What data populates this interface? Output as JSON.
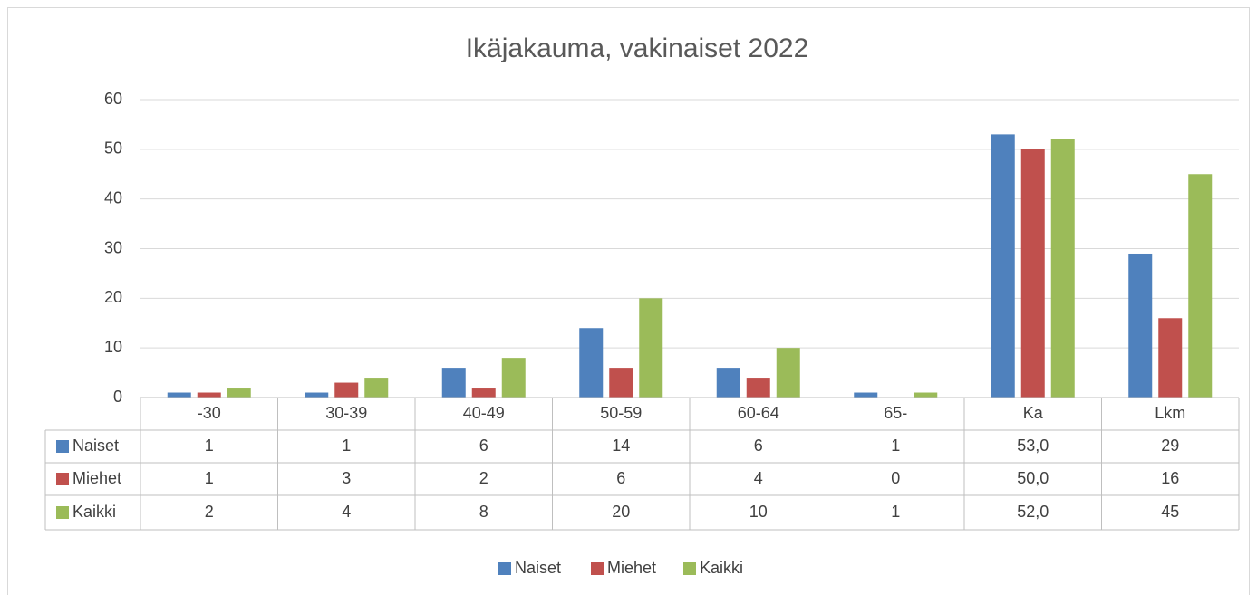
{
  "chart_data": {
    "type": "bar",
    "title": "Ikäjakauma, vakinaiset 2022",
    "categories": [
      "-30",
      "30-39",
      "40-49",
      "50-59",
      "60-64",
      "65-",
      "Ka",
      "Lkm"
    ],
    "series": [
      {
        "name": "Naiset",
        "color": "#4f81bd",
        "values": [
          1,
          1,
          6,
          14,
          6,
          1,
          53,
          29
        ],
        "value_labels": [
          "1",
          "1",
          "6",
          "14",
          "6",
          "1",
          "53,0",
          "29"
        ]
      },
      {
        "name": "Miehet",
        "color": "#c0504d",
        "values": [
          1,
          3,
          2,
          6,
          4,
          0,
          50,
          16
        ],
        "value_labels": [
          "1",
          "3",
          "2",
          "6",
          "4",
          "0",
          "50,0",
          "16"
        ]
      },
      {
        "name": "Kaikki",
        "color": "#9bbb59",
        "values": [
          2,
          4,
          8,
          20,
          10,
          1,
          52,
          45
        ],
        "value_labels": [
          "2",
          "4",
          "8",
          "20",
          "10",
          "1",
          "52,0",
          "45"
        ]
      }
    ],
    "ylim": [
      0,
      60
    ],
    "yticks": [
      0,
      10,
      20,
      30,
      40,
      50,
      60
    ],
    "grid": true,
    "legend": "bottom",
    "data_table": true
  }
}
